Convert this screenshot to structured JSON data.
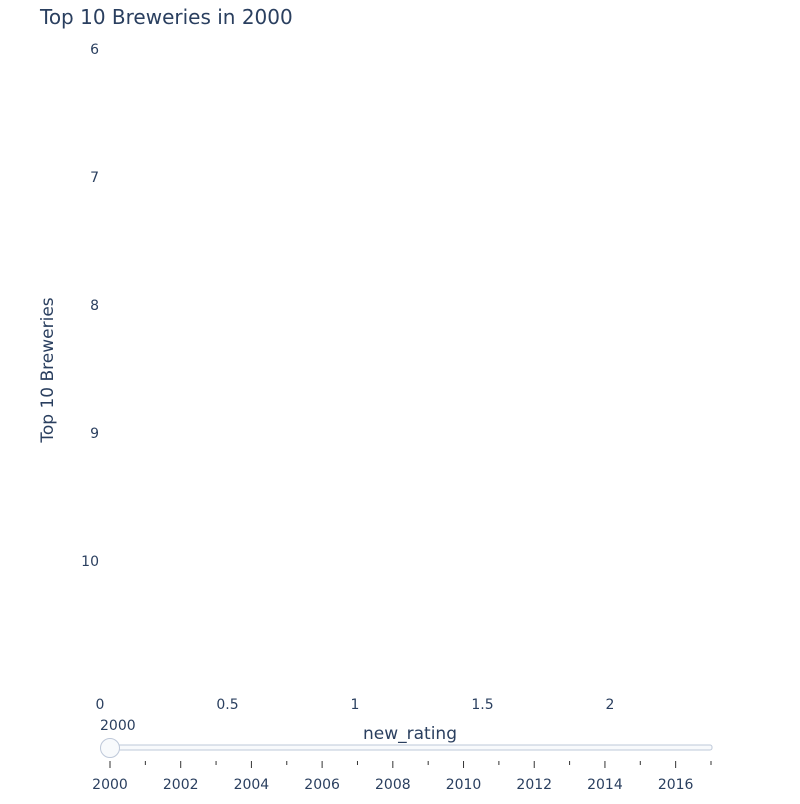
{
  "chart_data": {
    "type": "bar",
    "orientation": "horizontal",
    "title": "Top 10 Breweries in 2000",
    "xlabel": "new_rating",
    "ylabel": "Top 10 Breweries",
    "xlim": [
      0,
      2.4
    ],
    "x_ticks": [
      0,
      0.5,
      1,
      1.5,
      2
    ],
    "x_tick_labels": [
      "0",
      "0.5",
      "1",
      "1.5",
      "2"
    ],
    "y_ticks": [
      6,
      7,
      8,
      9,
      10
    ],
    "y_tick_labels": [
      "6",
      "7",
      "8",
      "9",
      "10"
    ],
    "ylim": [
      5.65,
      11.05
    ],
    "series": [],
    "grid": false,
    "slider": {
      "current_label": "2000",
      "current_value": 2000,
      "min": 2000,
      "max": 2017,
      "step": 1,
      "labeled_ticks": [
        2000,
        2002,
        2004,
        2006,
        2008,
        2010,
        2012,
        2014,
        2016
      ]
    },
    "colors": {
      "text": "#2a3f5f",
      "slider_border": "#bec8d9",
      "slider_track": "#f8fafc",
      "tick": "#333333"
    }
  }
}
